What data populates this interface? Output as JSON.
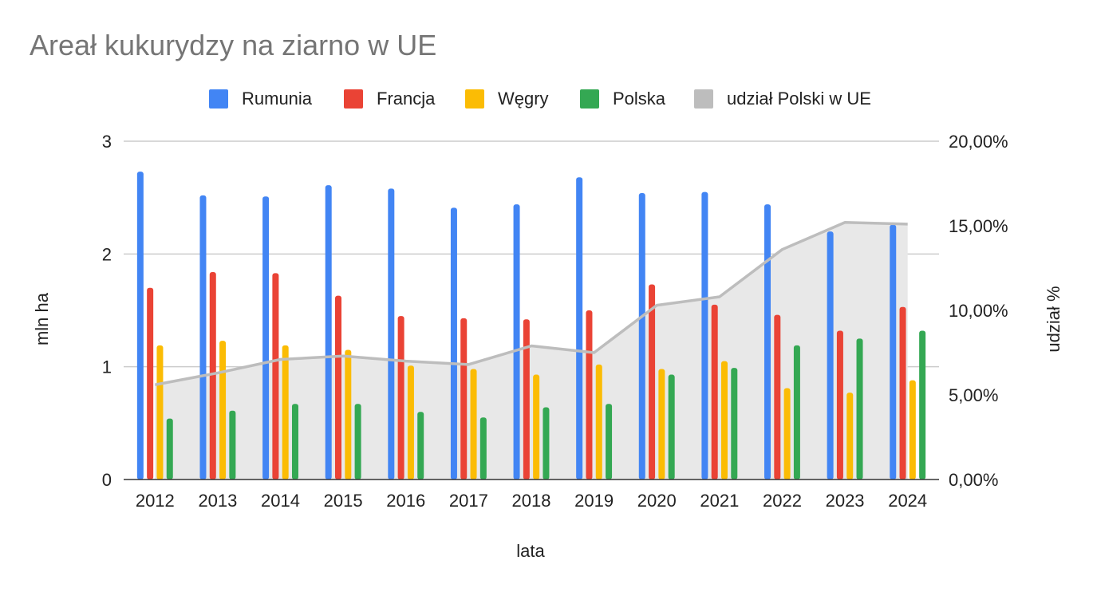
{
  "chart_data": {
    "type": "bar",
    "title": "Areał kukurydzy na ziarno w UE",
    "xlabel": "lata",
    "ylabel": "mln ha",
    "y2label": "udział %",
    "ylim": [
      0,
      3
    ],
    "y2lim": [
      0,
      20
    ],
    "yticks": [
      "0",
      "1",
      "2",
      "3"
    ],
    "y2ticks": [
      "0,00%",
      "5,00%",
      "10,00%",
      "15,00%",
      "20,00%"
    ],
    "grid": true,
    "legend_position": "top",
    "categories": [
      "2012",
      "2013",
      "2014",
      "2015",
      "2016",
      "2017",
      "2018",
      "2019",
      "2020",
      "2021",
      "2022",
      "2023",
      "2024"
    ],
    "series": [
      {
        "name": "Rumunia",
        "type": "bar",
        "axis": "left",
        "color": "#4285F4",
        "values": [
          2.73,
          2.52,
          2.51,
          2.61,
          2.58,
          2.41,
          2.44,
          2.68,
          2.54,
          2.55,
          2.44,
          2.2,
          2.26
        ]
      },
      {
        "name": "Francja",
        "type": "bar",
        "axis": "left",
        "color": "#EA4335",
        "values": [
          1.7,
          1.84,
          1.83,
          1.63,
          1.45,
          1.43,
          1.42,
          1.5,
          1.73,
          1.55,
          1.46,
          1.32,
          1.53
        ]
      },
      {
        "name": "Węgry",
        "type": "bar",
        "axis": "left",
        "color": "#FBBC04",
        "values": [
          1.19,
          1.23,
          1.19,
          1.15,
          1.01,
          0.98,
          0.93,
          1.02,
          0.98,
          1.05,
          0.81,
          0.77,
          0.88
        ]
      },
      {
        "name": "Polska",
        "type": "bar",
        "axis": "left",
        "color": "#34A853",
        "values": [
          0.54,
          0.61,
          0.67,
          0.67,
          0.6,
          0.55,
          0.64,
          0.67,
          0.93,
          0.99,
          1.19,
          1.25,
          1.32
        ]
      },
      {
        "name": "udział Polski w UE",
        "type": "area",
        "axis": "right",
        "color": "#BDBDBD",
        "values": [
          5.6,
          6.3,
          7.1,
          7.3,
          7.0,
          6.8,
          7.9,
          7.5,
          10.3,
          10.8,
          13.6,
          15.2,
          15.1
        ]
      }
    ]
  }
}
